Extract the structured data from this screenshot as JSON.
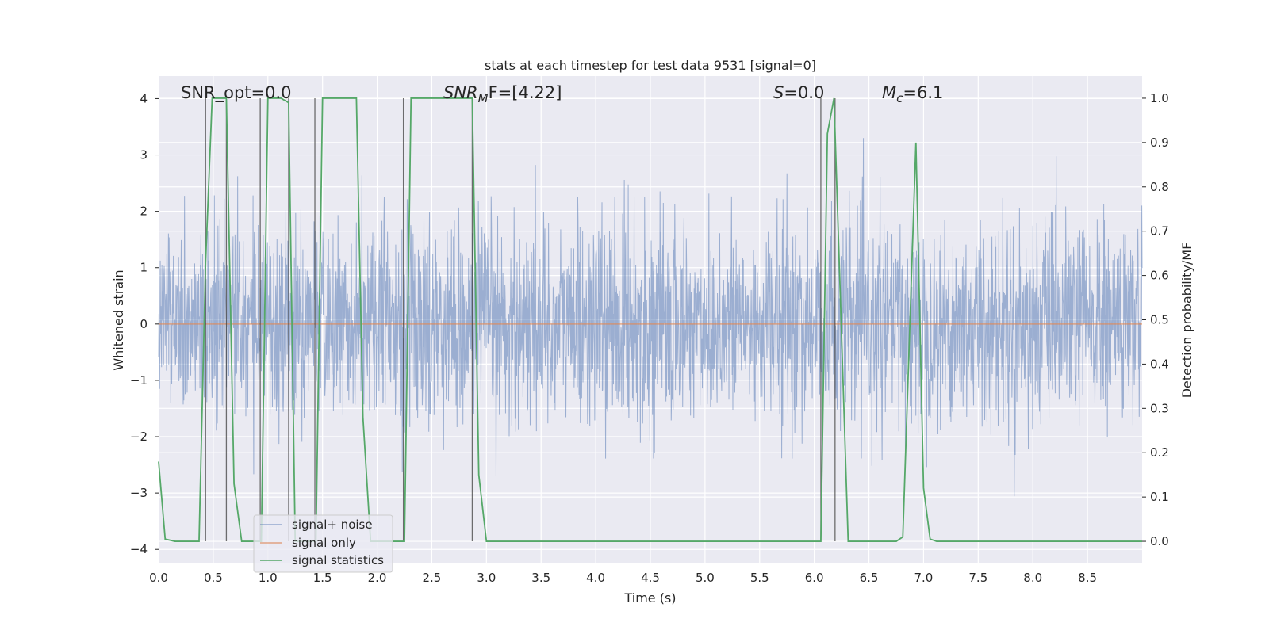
{
  "chart_data": {
    "type": "line",
    "title": "stats at each timestep for test data 9531 [signal=0]",
    "xlabel": "Time (s)",
    "ylabel": "Whitened strain",
    "y2label": "Detection probability/MF",
    "xlim": [
      0.0,
      9.0
    ],
    "ylim": [
      -4.25,
      4.4
    ],
    "y2lim": [
      -0.05,
      1.05
    ],
    "xticks": [
      "0.0",
      "0.5",
      "1.0",
      "1.5",
      "2.0",
      "2.5",
      "3.0",
      "3.5",
      "4.0",
      "4.5",
      "5.0",
      "5.5",
      "6.0",
      "6.5",
      "7.0",
      "7.5",
      "8.0",
      "8.5"
    ],
    "yticks": [
      "4",
      "3",
      "2",
      "1",
      "0",
      "−1",
      "−2",
      "−3",
      "−4"
    ],
    "y2ticks": [
      "1.0",
      "0.9",
      "0.8",
      "0.7",
      "0.6",
      "0.5",
      "0.4",
      "0.3",
      "0.2",
      "0.1",
      "0.0"
    ],
    "grid": true,
    "legend_position": "lower-left",
    "annotations": {
      "snr_opt": "SNR_opt=0.0",
      "snr_mf_main": "SNR",
      "snr_mf_sub": "M",
      "snr_mf_rest": "F=[4.22]",
      "s_main": "S",
      "s_rest": "=0.0",
      "mc_main": "M",
      "mc_sub": "c",
      "mc_rest": "=6.1"
    },
    "series": [
      {
        "name": "signal+ noise",
        "color": "#4c72b0",
        "description_values": "dense noise, std approx 1, range about -3.6 to 3.3",
        "noise_std": 0.9,
        "noise_range": [
          -3.6,
          3.3
        ]
      },
      {
        "name": "signal only",
        "color": "#dd8452",
        "x": [
          0.0,
          9.0
        ],
        "y": [
          0.0,
          0.0
        ]
      },
      {
        "name": "signal statistics",
        "color": "#55a868",
        "axis": "right",
        "x": [
          0.0,
          0.06,
          0.15,
          0.37,
          0.43,
          0.49,
          0.62,
          0.69,
          0.76,
          0.94,
          1.0,
          1.12,
          1.19,
          1.25,
          1.44,
          1.5,
          1.81,
          1.87,
          1.94,
          2.0,
          2.25,
          2.31,
          2.87,
          2.93,
          3.0,
          6.06,
          6.12,
          6.18,
          6.31,
          6.75,
          6.81,
          6.93,
          7.0,
          7.06,
          7.12,
          9.0
        ],
        "y": [
          0.18,
          0.005,
          0.0,
          0.0,
          0.63,
          1.0,
          1.0,
          0.13,
          0.0,
          0.0,
          1.0,
          1.0,
          0.99,
          0.0,
          0.0,
          1.0,
          1.0,
          0.28,
          0.0,
          0.0,
          0.0,
          1.0,
          1.0,
          0.15,
          0.0,
          0.0,
          0.92,
          1.0,
          0.0,
          0.0,
          0.01,
          0.9,
          0.12,
          0.005,
          0.0,
          0.0
        ]
      }
    ],
    "vertical_lines_x": [
      0.43,
      0.62,
      0.93,
      1.19,
      1.43,
      2.24,
      2.87,
      6.06,
      6.19
    ]
  }
}
